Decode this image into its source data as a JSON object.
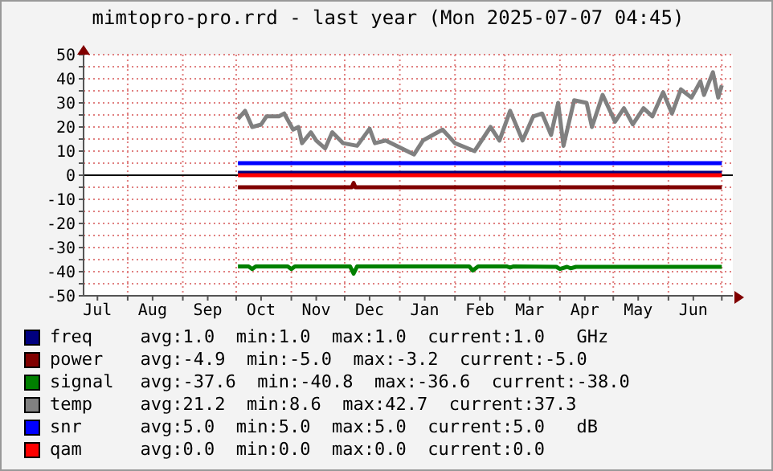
{
  "chart_data": {
    "type": "line",
    "title": "mimtopro-pro.rrd - last year (Mon 2025-07-07 04:45)",
    "xlim": [
      "2024-07-07T04:45",
      "2025-07-07T04:45"
    ],
    "xticks": [
      {
        "value": "2024-07-15",
        "label": "Jul"
      },
      {
        "value": "2024-08-01",
        "label": null
      },
      {
        "value": "2024-08-15",
        "label": "Aug"
      },
      {
        "value": "2024-09-01",
        "label": null
      },
      {
        "value": "2024-09-15",
        "label": "Sep"
      },
      {
        "value": "2024-10-01",
        "label": null
      },
      {
        "value": "2024-10-15",
        "label": "Oct"
      },
      {
        "value": "2024-11-01",
        "label": null
      },
      {
        "value": "2024-11-15",
        "label": "Nov"
      },
      {
        "value": "2024-12-01",
        "label": null
      },
      {
        "value": "2024-12-15",
        "label": "Dec"
      },
      {
        "value": "2025-01-01",
        "label": null
      },
      {
        "value": "2025-01-15",
        "label": "Jan"
      },
      {
        "value": "2025-02-01",
        "label": null
      },
      {
        "value": "2025-02-15",
        "label": "Feb"
      },
      {
        "value": "2025-03-01",
        "label": null
      },
      {
        "value": "2025-03-15",
        "label": "Mar"
      },
      {
        "value": "2025-04-01",
        "label": null
      },
      {
        "value": "2025-04-15",
        "label": "Apr"
      },
      {
        "value": "2025-05-01",
        "label": null
      },
      {
        "value": "2025-05-15",
        "label": "May"
      },
      {
        "value": "2025-06-01",
        "label": null
      },
      {
        "value": "2025-06-15",
        "label": "Jun"
      },
      {
        "value": "2025-07-01",
        "label": null
      }
    ],
    "ylim": [
      -50,
      50
    ],
    "yticks": [
      -50,
      {
        "value": -45,
        "label": null
      },
      -40,
      {
        "value": -35,
        "label": null
      },
      -30,
      {
        "value": -25,
        "label": null
      },
      -20,
      {
        "value": -15,
        "label": null
      },
      -10,
      {
        "value": -5,
        "label": null
      },
      0,
      {
        "value": 5,
        "label": null
      },
      10,
      {
        "value": 15,
        "label": null
      },
      20,
      {
        "value": 25,
        "label": null
      },
      30,
      {
        "value": 35,
        "label": null
      },
      40,
      {
        "value": 45,
        "label": null
      },
      50
    ],
    "grid": true,
    "legend": "bottom",
    "marker": "none",
    "line_style": "solid",
    "ref_lines": [
      {
        "axis": "y",
        "value": 0,
        "color": "#000000"
      }
    ],
    "annotations": [
      "avg:1.0  min:1.0  max:1.0  current:1.0   GHz",
      "avg:-4.9  min:-5.0  max:-3.2  current:-5.0",
      "avg:-37.6  min:-40.8  max:-36.6  current:-38.0",
      "avg:21.2  min:8.6  max:42.7  current:37.3",
      "avg:5.0  min:5.0  max:5.0  current:5.0   dB",
      "avg:0.0  min:0.0  max:0.0  current:0.0"
    ],
    "series": [
      {
        "name": "freq",
        "color": "#000080",
        "x": [
          "2024-10-02",
          "2025-07-01"
        ],
        "values": [
          1.0,
          1.0
        ]
      },
      {
        "name": "power",
        "color": "#800000",
        "x": [
          "2024-10-02",
          "2024-12-05",
          "2024-12-06",
          "2024-12-07",
          "2025-07-01"
        ],
        "values": [
          -5.0,
          -5.0,
          -3.2,
          -5.0,
          -5.0
        ]
      },
      {
        "name": "signal",
        "color": "#008000",
        "x": [
          "2024-10-02",
          "2024-10-08",
          "2024-10-10",
          "2024-10-12",
          "2024-10-30",
          "2024-11-01",
          "2024-11-03",
          "2024-12-04",
          "2024-12-06",
          "2024-12-08",
          "2025-02-09",
          "2025-02-11",
          "2025-02-14",
          "2025-03-02",
          "2025-03-04",
          "2025-03-06",
          "2025-03-30",
          "2025-04-01",
          "2025-04-05",
          "2025-04-07",
          "2025-04-10",
          "2025-07-01"
        ],
        "values": [
          -37.8,
          -37.8,
          -38.9,
          -37.8,
          -37.8,
          -38.9,
          -37.8,
          -37.8,
          -40.8,
          -37.8,
          -37.8,
          -39.5,
          -37.8,
          -37.8,
          -38.3,
          -37.8,
          -38.0,
          -38.9,
          -38.0,
          -38.6,
          -38.0,
          -38.0
        ]
      },
      {
        "name": "temp",
        "color": "#808080",
        "x": [
          "2024-10-02",
          "2024-10-06",
          "2024-10-10",
          "2024-10-15",
          "2024-10-18",
          "2024-10-25",
          "2024-10-28",
          "2024-11-02",
          "2024-11-05",
          "2024-11-07",
          "2024-11-12",
          "2024-11-15",
          "2024-11-20",
          "2024-11-24",
          "2024-11-30",
          "2024-12-08",
          "2024-12-15",
          "2024-12-18",
          "2024-12-24",
          "2024-12-27",
          "2025-01-09",
          "2025-01-14",
          "2025-01-25",
          "2025-02-01",
          "2025-02-12",
          "2025-02-21",
          "2025-02-26",
          "2025-03-04",
          "2025-03-11",
          "2025-03-17",
          "2025-03-22",
          "2025-03-27",
          "2025-03-31",
          "2025-04-03",
          "2025-04-09",
          "2025-04-16",
          "2025-04-19",
          "2025-04-25",
          "2025-05-02",
          "2025-05-07",
          "2025-05-12",
          "2025-05-18",
          "2025-05-23",
          "2025-05-29",
          "2025-06-03",
          "2025-06-08",
          "2025-06-14",
          "2025-06-19",
          "2025-06-21",
          "2025-06-26",
          "2025-06-29",
          "2025-07-01"
        ],
        "values": [
          23.3,
          26.7,
          20,
          21,
          24.4,
          24.4,
          25.6,
          18.9,
          20,
          13.3,
          17.8,
          14.4,
          11.1,
          17.8,
          13.3,
          12.2,
          19.3,
          13.3,
          14.4,
          13.3,
          8.6,
          14.4,
          18.9,
          13.3,
          10,
          20,
          14.4,
          26.7,
          14.4,
          24.4,
          25.6,
          16.7,
          30,
          12.2,
          31.1,
          30,
          20,
          33.3,
          22.2,
          27.8,
          21.1,
          27.8,
          24.4,
          34.4,
          25.6,
          35.6,
          32.2,
          38.9,
          33.3,
          42.7,
          32.2,
          37.3
        ]
      },
      {
        "name": "snr",
        "color": "#0000ff",
        "x": [
          "2024-10-02",
          "2025-07-01"
        ],
        "values": [
          5.0,
          5.0
        ]
      },
      {
        "name": "qam",
        "color": "#ff0000",
        "x": [
          "2024-10-02",
          "2025-07-01"
        ],
        "values": [
          0.0,
          0.0
        ]
      }
    ]
  }
}
